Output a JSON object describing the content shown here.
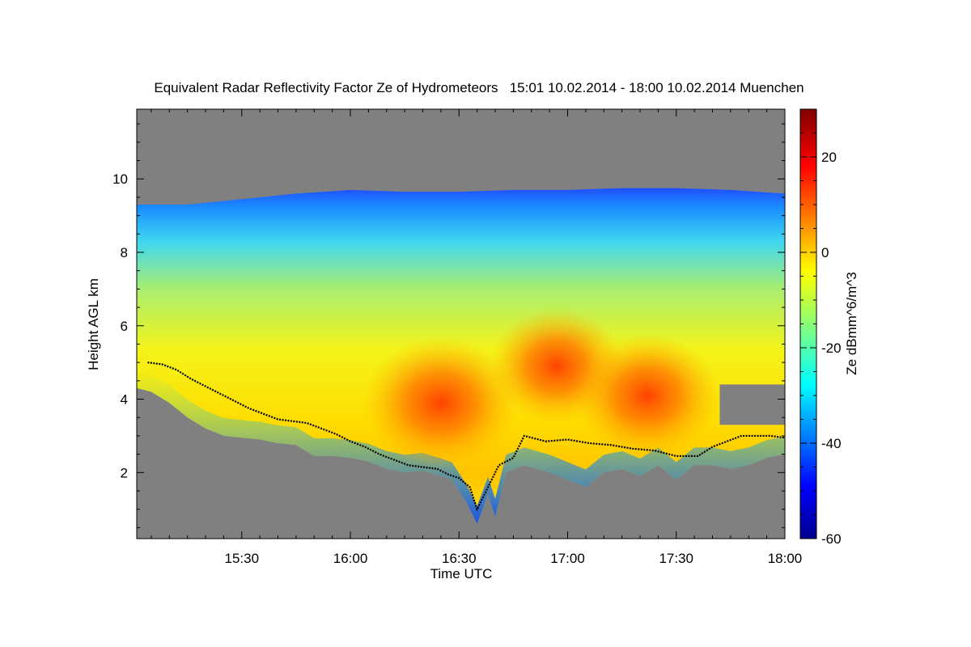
{
  "chart_data": {
    "type": "heatmap",
    "title": "Equivalent Radar Reflectivity Factor Ze of Hydrometeors   15:01 10.02.2014 - 18:00 10.02.2014 Muenchen",
    "xlabel": "Time UTC",
    "ylabel": "Height AGL km",
    "colorbar_label": "Ze dBmm^6/m^3",
    "xlim_minutes": [
      901,
      1080
    ],
    "ylim": [
      0.2,
      11.9
    ],
    "x_ticks": [
      {
        "value": 930,
        "label": "15:30"
      },
      {
        "value": 960,
        "label": "16:00"
      },
      {
        "value": 990,
        "label": "16:30"
      },
      {
        "value": 1020,
        "label": "17:00"
      },
      {
        "value": 1050,
        "label": "17:30"
      },
      {
        "value": 1080,
        "label": "18:00"
      }
    ],
    "y_ticks": [
      {
        "value": 2,
        "label": "2"
      },
      {
        "value": 4,
        "label": "4"
      },
      {
        "value": 6,
        "label": "6"
      },
      {
        "value": 8,
        "label": "8"
      },
      {
        "value": 10,
        "label": "10"
      }
    ],
    "colorbar_range": [
      -60,
      30
    ],
    "colorbar_ticks": [
      {
        "value": -60,
        "label": "-60"
      },
      {
        "value": -40,
        "label": "-40"
      },
      {
        "value": -20,
        "label": "-20"
      },
      {
        "value": 0,
        "label": "0"
      },
      {
        "value": 20,
        "label": "20"
      }
    ],
    "background_color": "#808080",
    "cloud_top_km": [
      [
        901,
        9.3
      ],
      [
        915,
        9.3
      ],
      [
        930,
        9.45
      ],
      [
        945,
        9.6
      ],
      [
        960,
        9.7
      ],
      [
        975,
        9.65
      ],
      [
        990,
        9.65
      ],
      [
        1005,
        9.7
      ],
      [
        1020,
        9.7
      ],
      [
        1035,
        9.75
      ],
      [
        1050,
        9.75
      ],
      [
        1065,
        9.7
      ],
      [
        1080,
        9.6
      ]
    ],
    "cloud_base_km": [
      [
        901,
        4.3
      ],
      [
        905,
        4.2
      ],
      [
        910,
        3.9
      ],
      [
        915,
        3.5
      ],
      [
        920,
        3.2
      ],
      [
        925,
        3.0
      ],
      [
        930,
        2.95
      ],
      [
        935,
        2.9
      ],
      [
        940,
        2.8
      ],
      [
        945,
        2.75
      ],
      [
        950,
        2.45
      ],
      [
        955,
        2.45
      ],
      [
        960,
        2.4
      ],
      [
        965,
        2.3
      ],
      [
        970,
        2.1
      ],
      [
        975,
        2.0
      ],
      [
        980,
        2.05
      ],
      [
        985,
        1.9
      ],
      [
        988,
        1.8
      ],
      [
        992,
        1.2
      ],
      [
        995,
        0.6
      ],
      [
        998,
        1.4
      ],
      [
        1000,
        0.8
      ],
      [
        1003,
        2.0
      ],
      [
        1008,
        2.2
      ],
      [
        1015,
        2.0
      ],
      [
        1020,
        1.8
      ],
      [
        1025,
        1.6
      ],
      [
        1030,
        2.0
      ],
      [
        1035,
        2.1
      ],
      [
        1040,
        1.9
      ],
      [
        1045,
        2.2
      ],
      [
        1050,
        1.8
      ],
      [
        1055,
        2.2
      ],
      [
        1060,
        2.2
      ],
      [
        1065,
        2.1
      ],
      [
        1070,
        2.2
      ],
      [
        1075,
        2.4
      ],
      [
        1080,
        2.5
      ]
    ],
    "upper_gap": {
      "time_range": [
        1062,
        1080
      ],
      "base_km": 3.3,
      "top_km": 4.4
    },
    "melting_layer_km": [
      [
        904,
        5.0
      ],
      [
        908,
        4.95
      ],
      [
        912,
        4.8
      ],
      [
        916,
        4.55
      ],
      [
        920,
        4.35
      ],
      [
        924,
        4.15
      ],
      [
        928,
        3.95
      ],
      [
        932,
        3.75
      ],
      [
        936,
        3.6
      ],
      [
        940,
        3.45
      ],
      [
        944,
        3.4
      ],
      [
        948,
        3.35
      ],
      [
        952,
        3.2
      ],
      [
        956,
        3.05
      ],
      [
        960,
        2.85
      ],
      [
        964,
        2.7
      ],
      [
        968,
        2.5
      ],
      [
        972,
        2.35
      ],
      [
        976,
        2.2
      ],
      [
        980,
        2.15
      ],
      [
        984,
        2.1
      ],
      [
        987,
        1.95
      ],
      [
        990,
        1.85
      ],
      [
        993,
        1.6
      ],
      [
        995,
        1.0
      ],
      [
        997,
        1.4
      ],
      [
        1001,
        2.2
      ],
      [
        1005,
        2.4
      ],
      [
        1008,
        3.0
      ],
      [
        1014,
        2.85
      ],
      [
        1020,
        2.9
      ],
      [
        1026,
        2.8
      ],
      [
        1032,
        2.75
      ],
      [
        1038,
        2.65
      ],
      [
        1044,
        2.6
      ],
      [
        1050,
        2.45
      ],
      [
        1056,
        2.45
      ],
      [
        1060,
        2.7
      ],
      [
        1064,
        2.85
      ],
      [
        1068,
        3.0
      ],
      [
        1072,
        3.0
      ],
      [
        1076,
        3.0
      ],
      [
        1080,
        2.95
      ]
    ],
    "reflectivity_cores": [
      {
        "time": 985,
        "height_km": 3.9,
        "dbz": 12
      },
      {
        "time": 1017,
        "height_km": 4.9,
        "dbz": 8
      },
      {
        "time": 1042,
        "height_km": 4.1,
        "dbz": 10
      }
    ]
  }
}
